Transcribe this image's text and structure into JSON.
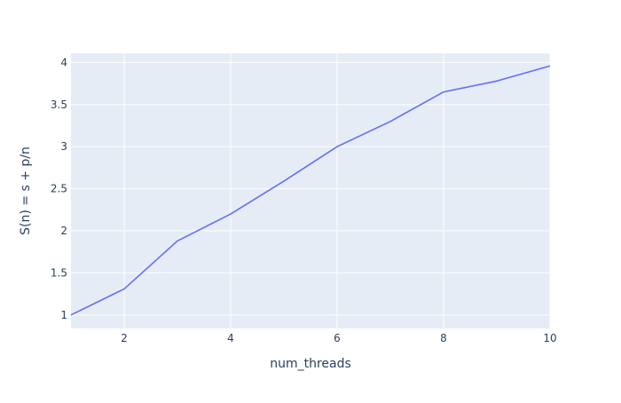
{
  "chart_data": {
    "type": "line",
    "title": "",
    "xlabel": "num_threads",
    "ylabel": "S(n) = s + p/n",
    "xlim": [
      1,
      10
    ],
    "ylim": [
      0.84,
      4.11
    ],
    "x_ticks": [
      2,
      4,
      6,
      8,
      10
    ],
    "x_tick_labels": [
      "2",
      "4",
      "6",
      "8",
      "10"
    ],
    "y_ticks": [
      1,
      1.5,
      2,
      2.5,
      3,
      3.5,
      4
    ],
    "y_tick_labels": [
      "1",
      "1.5",
      "2",
      "2.5",
      "3",
      "3.5",
      "4"
    ],
    "grid": true,
    "plot_background": "#e5ecf6",
    "grid_color": "#ffffff",
    "series": [
      {
        "color": "#636efa",
        "x": [
          1,
          2,
          3,
          4,
          5,
          6,
          7,
          8,
          9,
          10
        ],
        "y": [
          1.0,
          1.31,
          1.88,
          2.2,
          2.59,
          3.0,
          3.3,
          3.65,
          3.78,
          3.96
        ]
      }
    ]
  }
}
